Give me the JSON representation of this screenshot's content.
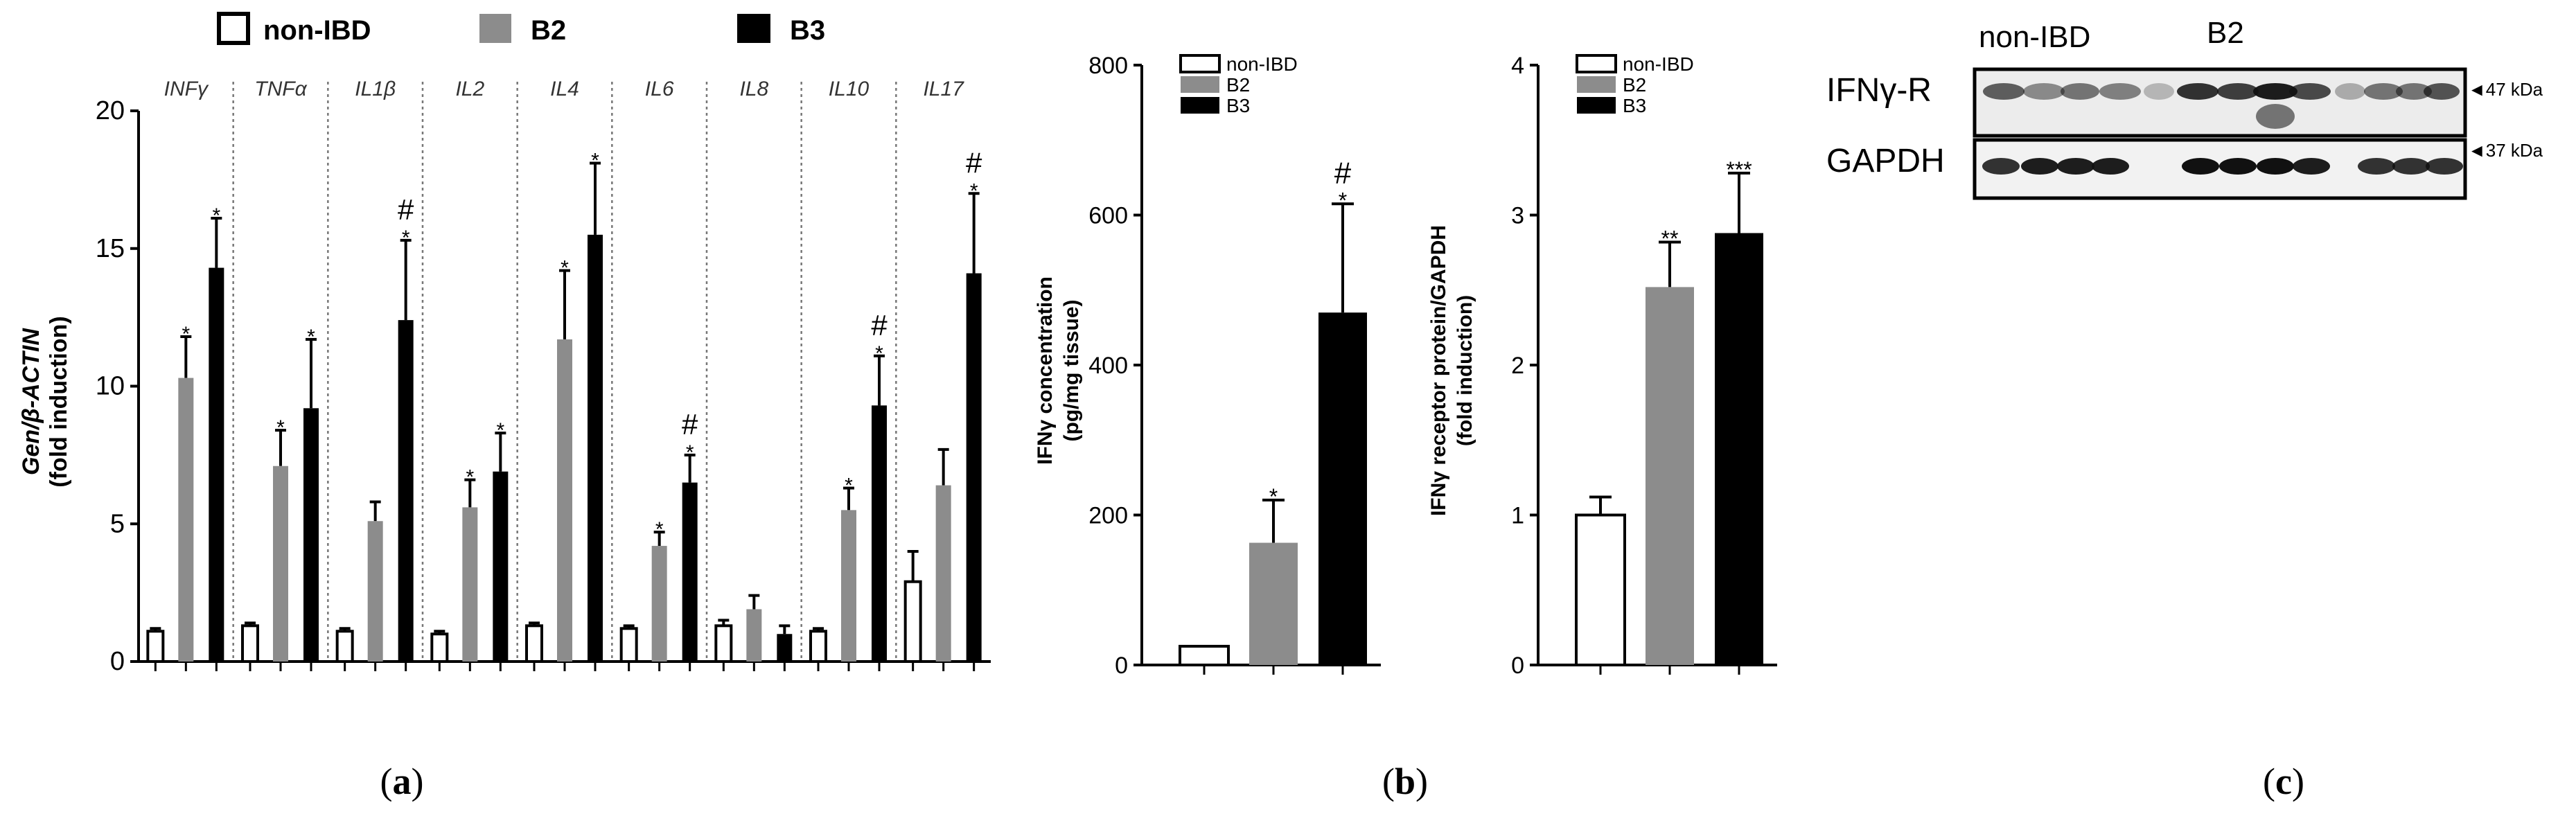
{
  "panel_a": {
    "legend": [
      {
        "label": "non-IBD",
        "color": "#ffffff"
      },
      {
        "label": "B2",
        "color": "#8c8c8c"
      },
      {
        "label": "B3",
        "color": "#000000"
      }
    ],
    "caption_open": "(",
    "caption_letter": "a",
    "caption_close": ")"
  },
  "panel_b": {
    "caption_open": "(",
    "caption_letter": "b",
    "caption_close": ")"
  },
  "panel_c": {
    "header_left": "non-IBD",
    "header_right": "B2",
    "row1_label": "IFNγ-R",
    "row2_label": "GAPDH",
    "row1_marker": "◄47 kDa",
    "row2_marker": "◄37 kDa",
    "caption_open": "(",
    "caption_letter": "c",
    "caption_close": ")"
  },
  "chart_data": [
    {
      "id": "a",
      "type": "bar",
      "title": "",
      "xlabel": "",
      "ylabel_main": "Gen/β-ACTIN",
      "ylabel_sub": "(fold induction)",
      "ylim": [
        0,
        20
      ],
      "yticks": [
        "0",
        "5",
        "10",
        "15",
        "20"
      ],
      "ytick_values": [
        0,
        5,
        10,
        15,
        20
      ],
      "categories": [
        "INFγ",
        "TNFα",
        "IL1β",
        "IL2",
        "IL4",
        "IL6",
        "IL8",
        "IL10",
        "IL17"
      ],
      "series": [
        {
          "name": "non-IBD",
          "color": "#ffffff",
          "values": [
            1.1,
            1.3,
            1.1,
            1.0,
            1.3,
            1.2,
            1.3,
            1.1,
            2.9
          ],
          "errors": [
            0.1,
            0.1,
            0.1,
            0.1,
            0.1,
            0.1,
            0.2,
            0.1,
            1.1
          ],
          "annotations": [
            "",
            "",
            "",
            "",
            "",
            "",
            "",
            "",
            ""
          ]
        },
        {
          "name": "B2",
          "color": "#8c8c8c",
          "values": [
            10.3,
            7.1,
            5.1,
            5.6,
            11.7,
            4.2,
            1.9,
            5.5,
            6.4
          ],
          "errors": [
            1.5,
            1.3,
            0.7,
            1.0,
            2.5,
            0.5,
            0.5,
            0.8,
            1.3
          ],
          "annotations": [
            "*",
            "*",
            "",
            "*",
            "*",
            "*",
            "",
            "*",
            ""
          ]
        },
        {
          "name": "B3",
          "color": "#000000",
          "values": [
            14.3,
            9.2,
            12.4,
            6.9,
            15.5,
            6.5,
            1.0,
            9.3,
            14.1
          ],
          "errors": [
            1.8,
            2.5,
            2.9,
            1.4,
            2.6,
            1.0,
            0.3,
            1.8,
            2.9
          ],
          "annotations": [
            "*",
            "*",
            "#\n*",
            "*",
            "*",
            "#\n*",
            "",
            "#\n*",
            "#\n*"
          ]
        }
      ]
    },
    {
      "id": "b1",
      "type": "bar",
      "ylabel_main": "IFNγ concentration",
      "ylabel_sub": "(pg/mg tissue)",
      "ylim": [
        0,
        800
      ],
      "yticks": [
        "0",
        "200",
        "400",
        "600",
        "800"
      ],
      "ytick_values": [
        0,
        200,
        400,
        600,
        800
      ],
      "categories": [
        "non-IBD",
        "B2",
        "B3"
      ],
      "colors": [
        "#ffffff",
        "#8c8c8c",
        "#000000"
      ],
      "values": [
        25,
        163,
        470
      ],
      "errors": [
        0,
        57,
        145
      ],
      "annotations": [
        "",
        "*",
        "#\n*"
      ],
      "legend": [
        "non-IBD",
        "B2",
        "B3"
      ]
    },
    {
      "id": "b2",
      "type": "bar",
      "ylabel_main": "IFNγ receptor protein/GAPDH",
      "ylabel_sub": "(fold induction)",
      "ylim": [
        0,
        4
      ],
      "yticks": [
        "0",
        "1",
        "2",
        "3",
        "4"
      ],
      "ytick_values": [
        0,
        1,
        2,
        3,
        4
      ],
      "categories": [
        "non-IBD",
        "B2",
        "B3"
      ],
      "colors": [
        "#ffffff",
        "#8c8c8c",
        "#000000"
      ],
      "values": [
        1.0,
        2.52,
        2.88
      ],
      "errors": [
        0.12,
        0.3,
        0.4
      ],
      "annotations": [
        "",
        "**",
        "***"
      ],
      "legend": [
        "non-IBD",
        "B2",
        "B3"
      ]
    }
  ]
}
